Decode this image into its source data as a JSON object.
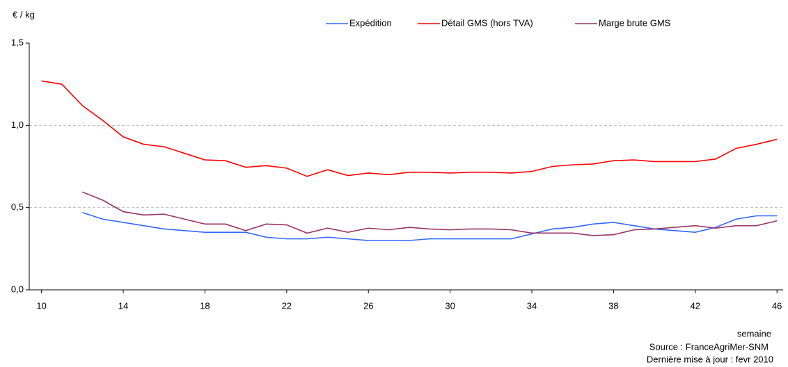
{
  "chart_data": {
    "type": "line",
    "y_label": "€ / kg",
    "x_label": "semaine",
    "source": "Source : FranceAgriMer-SNM",
    "update": "Dernière mise à jour : fevr 2010",
    "x": [
      10,
      11,
      12,
      13,
      14,
      15,
      16,
      17,
      18,
      19,
      20,
      21,
      22,
      23,
      24,
      25,
      26,
      27,
      28,
      29,
      30,
      31,
      32,
      33,
      34,
      35,
      36,
      37,
      38,
      39,
      40,
      41,
      42,
      43,
      44,
      45,
      46
    ],
    "series": [
      {
        "name": "Expédition",
        "color": "#3366ff",
        "values": [
          null,
          null,
          0.47,
          0.43,
          0.41,
          0.39,
          0.37,
          0.36,
          0.35,
          0.35,
          0.35,
          0.32,
          0.31,
          0.31,
          0.32,
          0.31,
          0.3,
          0.3,
          0.3,
          0.31,
          0.31,
          0.31,
          0.31,
          0.31,
          0.34,
          0.37,
          0.38,
          0.4,
          0.41,
          0.39,
          0.37,
          0.36,
          0.35,
          0.38,
          0.43,
          0.45,
          0.45
        ]
      },
      {
        "name": "Détail GMS (hors TVA)",
        "color": "#ff0000",
        "values": [
          1.27,
          1.25,
          1.12,
          1.03,
          0.93,
          0.885,
          0.87,
          0.83,
          0.79,
          0.785,
          0.745,
          0.755,
          0.74,
          0.69,
          0.73,
          0.695,
          0.71,
          0.7,
          0.715,
          0.715,
          0.71,
          0.715,
          0.715,
          0.71,
          0.72,
          0.75,
          0.76,
          0.765,
          0.785,
          0.79,
          0.78,
          0.78,
          0.78,
          0.795,
          0.86,
          0.885,
          0.915
        ]
      },
      {
        "name": "Marge brute GMS",
        "color": "#993366",
        "values": [
          null,
          null,
          0.595,
          0.545,
          0.475,
          0.455,
          0.46,
          0.43,
          0.4,
          0.4,
          0.36,
          0.4,
          0.395,
          0.345,
          0.375,
          0.35,
          0.375,
          0.365,
          0.38,
          0.37,
          0.365,
          0.37,
          0.37,
          0.365,
          0.345,
          0.345,
          0.345,
          0.33,
          0.335,
          0.365,
          0.37,
          0.38,
          0.39,
          0.375,
          0.39,
          0.39,
          0.42
        ]
      }
    ],
    "xlim": [
      9.4,
      46.3
    ],
    "xticks": [
      10,
      14,
      18,
      22,
      26,
      30,
      34,
      38,
      42,
      46
    ],
    "ylim": [
      0,
      1.5
    ],
    "yticks": [
      {
        "value": 0,
        "label": "0,0"
      },
      {
        "value": 0.5,
        "label": "0,5"
      },
      {
        "value": 1,
        "label": "1,0"
      },
      {
        "value": 1.5,
        "label": "1,5"
      }
    ],
    "grid": true
  }
}
